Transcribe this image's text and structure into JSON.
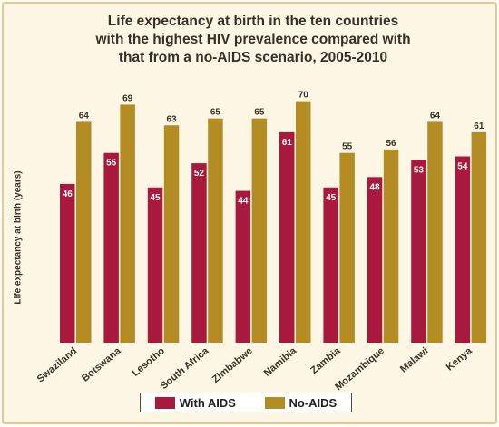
{
  "title_lines": [
    "Life expectancy at birth in the ten countries",
    "with the highest HIV prevalence compared with",
    "that from a no-AIDS scenario, 2005-2010"
  ],
  "colors": {
    "with_aids": "#a8193d",
    "no_aids": "#b38d24",
    "background": "#fff7e6",
    "border": "#e8c98a"
  },
  "chart_data": {
    "type": "bar",
    "title": "Life expectancy at birth in the ten countries with the highest HIV prevalence compared with that from a no-AIDS scenario, 2005-2010",
    "xlabel": "",
    "ylabel": "Life expectancy at birth (years)",
    "ylim": [
      0,
      72
    ],
    "grid": false,
    "legend_position": "bottom",
    "categories": [
      "Swaziland",
      "Botswana",
      "Lesotho",
      "South Africa",
      "Zimbabwe",
      "Namibia",
      "Zambia",
      "Mozambique",
      "Malawi",
      "Kenya"
    ],
    "series": [
      {
        "name": "With AIDS",
        "values": [
          46,
          55,
          45,
          52,
          44,
          61,
          45,
          48,
          53,
          54
        ]
      },
      {
        "name": "No-AIDS",
        "values": [
          64,
          69,
          63,
          65,
          65,
          70,
          55,
          56,
          64,
          61
        ]
      }
    ]
  }
}
